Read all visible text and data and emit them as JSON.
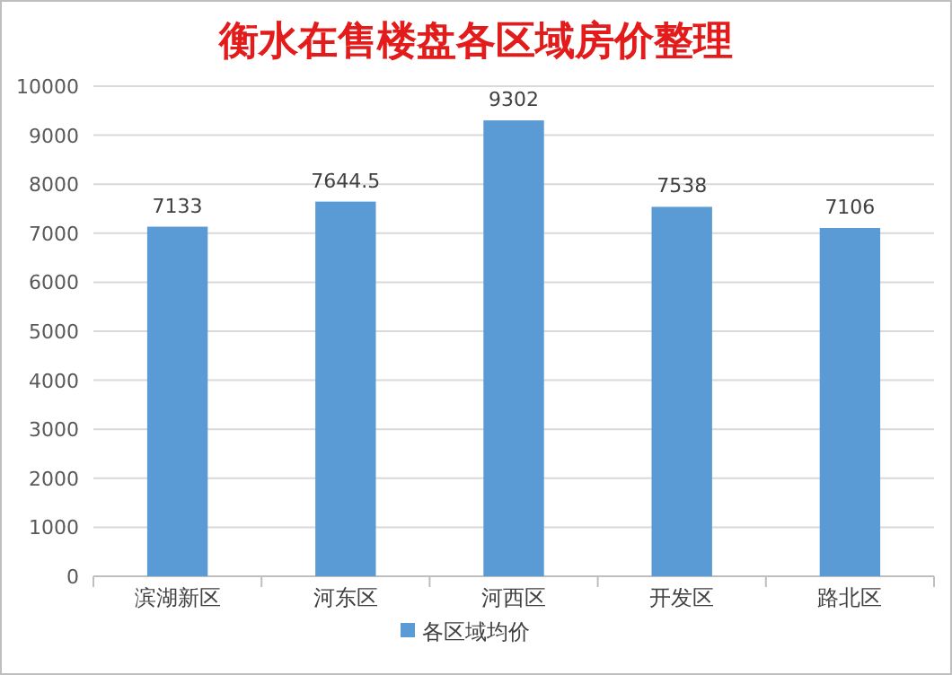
{
  "chart_data": {
    "type": "bar",
    "title": "衡水在售楼盘各区域房价整理",
    "categories": [
      "滨湖新区",
      "河东区",
      "河西区",
      "开发区",
      "路北区"
    ],
    "series": [
      {
        "name": "各区域均价",
        "color": "#5b9bd5",
        "values": [
          7133,
          7644.5,
          9302,
          7538,
          7106
        ]
      }
    ],
    "ylim": [
      0,
      10000
    ],
    "yticks": [
      0,
      1000,
      2000,
      3000,
      4000,
      5000,
      6000,
      7000,
      8000,
      9000,
      10000
    ],
    "grid": "y",
    "legend": "bottom",
    "data_labels": true
  }
}
